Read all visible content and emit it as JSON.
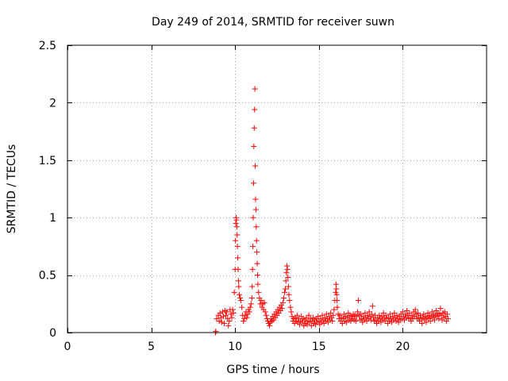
{
  "chart_data": {
    "type": "scatter",
    "title": "Day 249 of 2014, SRMTID for receiver suwn",
    "xlabel": "GPS time / hours",
    "ylabel": "SRMTID / TECUs",
    "xlim": [
      0,
      25
    ],
    "ylim": [
      0,
      2.5
    ],
    "xticks": [
      0,
      5,
      10,
      15,
      20
    ],
    "xtick_labels": [
      "0",
      "5",
      "10",
      "15",
      "20"
    ],
    "yticks": [
      0,
      0.5,
      1,
      1.5,
      2,
      2.5
    ],
    "ytick_labels": [
      "0",
      "0.5",
      "1",
      "1.5",
      "2",
      "2.5"
    ],
    "grid": true,
    "marker": "+",
    "series_color": "#ff0000",
    "series": [
      {
        "name": "SRMTID",
        "points": [
          [
            8.83,
            0.0
          ],
          [
            8.85,
            0.01
          ],
          [
            8.9,
            0.12
          ],
          [
            9.0,
            0.15
          ],
          [
            9.05,
            0.1
          ],
          [
            9.1,
            0.17
          ],
          [
            9.15,
            0.13
          ],
          [
            9.2,
            0.09
          ],
          [
            9.25,
            0.18
          ],
          [
            9.3,
            0.14
          ],
          [
            9.35,
            0.08
          ],
          [
            9.4,
            0.19
          ],
          [
            9.45,
            0.15
          ],
          [
            9.5,
            0.18
          ],
          [
            9.55,
            0.12
          ],
          [
            9.6,
            0.06
          ],
          [
            9.65,
            0.1
          ],
          [
            9.7,
            0.2
          ],
          [
            9.75,
            0.16
          ],
          [
            9.8,
            0.13
          ],
          [
            9.85,
            0.2
          ],
          [
            9.9,
            0.17
          ],
          [
            9.95,
            0.35
          ],
          [
            10.0,
            0.55
          ],
          [
            10.02,
            0.8
          ],
          [
            10.04,
            0.95
          ],
          [
            10.06,
            1.0
          ],
          [
            10.08,
            0.98
          ],
          [
            10.1,
            0.92
          ],
          [
            10.12,
            0.85
          ],
          [
            10.14,
            0.75
          ],
          [
            10.16,
            0.65
          ],
          [
            10.18,
            0.55
          ],
          [
            10.2,
            0.45
          ],
          [
            10.22,
            0.4
          ],
          [
            10.25,
            0.33
          ],
          [
            10.3,
            0.3
          ],
          [
            10.35,
            0.28
          ],
          [
            10.4,
            0.22
          ],
          [
            10.45,
            0.15
          ],
          [
            10.5,
            0.1
          ],
          [
            10.55,
            0.12
          ],
          [
            10.6,
            0.15
          ],
          [
            10.65,
            0.18
          ],
          [
            10.7,
            0.13
          ],
          [
            10.75,
            0.16
          ],
          [
            10.8,
            0.2
          ],
          [
            10.85,
            0.18
          ],
          [
            10.9,
            0.22
          ],
          [
            10.95,
            0.25
          ],
          [
            11.0,
            0.3
          ],
          [
            11.02,
            0.4
          ],
          [
            11.04,
            0.55
          ],
          [
            11.06,
            0.75
          ],
          [
            11.08,
            1.0
          ],
          [
            11.1,
            1.3
          ],
          [
            11.12,
            1.62
          ],
          [
            11.14,
            1.78
          ],
          [
            11.16,
            1.94
          ],
          [
            11.18,
            2.12
          ],
          [
            11.2,
            1.45
          ],
          [
            11.22,
            1.16
          ],
          [
            11.24,
            1.07
          ],
          [
            11.26,
            0.92
          ],
          [
            11.28,
            0.8
          ],
          [
            11.3,
            0.7
          ],
          [
            11.32,
            0.6
          ],
          [
            11.34,
            0.5
          ],
          [
            11.36,
            0.42
          ],
          [
            11.4,
            0.35
          ],
          [
            11.45,
            0.3
          ],
          [
            11.5,
            0.25
          ],
          [
            11.55,
            0.28
          ],
          [
            11.6,
            0.22
          ],
          [
            11.65,
            0.25
          ],
          [
            11.7,
            0.2
          ],
          [
            11.75,
            0.26
          ],
          [
            11.8,
            0.18
          ],
          [
            11.85,
            0.15
          ],
          [
            11.9,
            0.12
          ],
          [
            11.95,
            0.1
          ],
          [
            12.0,
            0.08
          ],
          [
            12.05,
            0.06
          ],
          [
            12.1,
            0.09
          ],
          [
            12.15,
            0.12
          ],
          [
            12.2,
            0.1
          ],
          [
            12.25,
            0.14
          ],
          [
            12.3,
            0.11
          ],
          [
            12.35,
            0.16
          ],
          [
            12.4,
            0.13
          ],
          [
            12.45,
            0.18
          ],
          [
            12.5,
            0.15
          ],
          [
            12.55,
            0.2
          ],
          [
            12.6,
            0.17
          ],
          [
            12.65,
            0.22
          ],
          [
            12.7,
            0.19
          ],
          [
            12.75,
            0.24
          ],
          [
            12.8,
            0.21
          ],
          [
            12.85,
            0.26
          ],
          [
            12.9,
            0.3
          ],
          [
            12.95,
            0.35
          ],
          [
            13.0,
            0.38
          ],
          [
            13.03,
            0.45
          ],
          [
            13.06,
            0.52
          ],
          [
            13.09,
            0.58
          ],
          [
            13.12,
            0.55
          ],
          [
            13.15,
            0.48
          ],
          [
            13.18,
            0.4
          ],
          [
            13.21,
            0.33
          ],
          [
            13.25,
            0.28
          ],
          [
            13.3,
            0.22
          ],
          [
            13.35,
            0.18
          ],
          [
            13.4,
            0.14
          ],
          [
            13.45,
            0.1
          ],
          [
            13.5,
            0.12
          ],
          [
            13.55,
            0.08
          ],
          [
            13.6,
            0.13
          ],
          [
            13.65,
            0.1
          ],
          [
            13.7,
            0.15
          ],
          [
            13.75,
            0.09
          ],
          [
            13.8,
            0.12
          ],
          [
            13.85,
            0.07
          ],
          [
            13.9,
            0.1
          ],
          [
            13.95,
            0.14
          ],
          [
            14.0,
            0.09
          ],
          [
            14.05,
            0.12
          ],
          [
            14.1,
            0.06
          ],
          [
            14.15,
            0.11
          ],
          [
            14.2,
            0.08
          ],
          [
            14.25,
            0.13
          ],
          [
            14.3,
            0.07
          ],
          [
            14.35,
            0.1
          ],
          [
            14.4,
            0.15
          ],
          [
            14.45,
            0.09
          ],
          [
            14.5,
            0.12
          ],
          [
            14.55,
            0.06
          ],
          [
            14.6,
            0.1
          ],
          [
            14.65,
            0.13
          ],
          [
            14.7,
            0.08
          ],
          [
            14.75,
            0.11
          ],
          [
            14.8,
            0.07
          ],
          [
            14.85,
            0.12
          ],
          [
            14.9,
            0.09
          ],
          [
            14.95,
            0.14
          ],
          [
            15.0,
            0.1
          ],
          [
            15.05,
            0.07
          ],
          [
            15.1,
            0.12
          ],
          [
            15.15,
            0.09
          ],
          [
            15.2,
            0.15
          ],
          [
            15.25,
            0.11
          ],
          [
            15.3,
            0.08
          ],
          [
            15.35,
            0.13
          ],
          [
            15.4,
            0.1
          ],
          [
            15.45,
            0.16
          ],
          [
            15.5,
            0.12
          ],
          [
            15.55,
            0.09
          ],
          [
            15.6,
            0.14
          ],
          [
            15.65,
            0.11
          ],
          [
            15.7,
            0.17
          ],
          [
            15.75,
            0.13
          ],
          [
            15.8,
            0.1
          ],
          [
            15.85,
            0.15
          ],
          [
            15.9,
            0.2
          ],
          [
            15.95,
            0.28
          ],
          [
            16.0,
            0.35
          ],
          [
            16.02,
            0.42
          ],
          [
            16.04,
            0.38
          ],
          [
            16.06,
            0.33
          ],
          [
            16.08,
            0.28
          ],
          [
            16.1,
            0.22
          ],
          [
            16.15,
            0.16
          ],
          [
            16.2,
            0.12
          ],
          [
            16.25,
            0.15
          ],
          [
            16.3,
            0.1
          ],
          [
            16.35,
            0.13
          ],
          [
            16.4,
            0.08
          ],
          [
            16.45,
            0.12
          ],
          [
            16.5,
            0.16
          ],
          [
            16.55,
            0.1
          ],
          [
            16.6,
            0.14
          ],
          [
            16.65,
            0.09
          ],
          [
            16.7,
            0.13
          ],
          [
            16.75,
            0.17
          ],
          [
            16.8,
            0.11
          ],
          [
            16.85,
            0.15
          ],
          [
            16.9,
            0.1
          ],
          [
            16.95,
            0.14
          ],
          [
            17.0,
            0.12
          ],
          [
            17.05,
            0.16
          ],
          [
            17.1,
            0.11
          ],
          [
            17.15,
            0.15
          ],
          [
            17.2,
            0.1
          ],
          [
            17.25,
            0.14
          ],
          [
            17.3,
            0.18
          ],
          [
            17.35,
            0.28
          ],
          [
            17.4,
            0.15
          ],
          [
            17.45,
            0.11
          ],
          [
            17.5,
            0.16
          ],
          [
            17.55,
            0.12
          ],
          [
            17.6,
            0.09
          ],
          [
            17.65,
            0.14
          ],
          [
            17.7,
            0.11
          ],
          [
            17.75,
            0.17
          ],
          [
            17.8,
            0.13
          ],
          [
            17.85,
            0.1
          ],
          [
            17.9,
            0.15
          ],
          [
            17.95,
            0.12
          ],
          [
            18.0,
            0.18
          ],
          [
            18.05,
            0.14
          ],
          [
            18.1,
            0.11
          ],
          [
            18.15,
            0.16
          ],
          [
            18.2,
            0.23
          ],
          [
            18.25,
            0.13
          ],
          [
            18.3,
            0.1
          ],
          [
            18.35,
            0.15
          ],
          [
            18.4,
            0.11
          ],
          [
            18.45,
            0.08
          ],
          [
            18.5,
            0.13
          ],
          [
            18.55,
            0.1
          ],
          [
            18.6,
            0.15
          ],
          [
            18.65,
            0.12
          ],
          [
            18.7,
            0.09
          ],
          [
            18.75,
            0.14
          ],
          [
            18.8,
            0.11
          ],
          [
            18.85,
            0.17
          ],
          [
            18.9,
            0.13
          ],
          [
            18.95,
            0.1
          ],
          [
            19.0,
            0.15
          ],
          [
            19.05,
            0.12
          ],
          [
            19.1,
            0.08
          ],
          [
            19.15,
            0.13
          ],
          [
            19.2,
            0.1
          ],
          [
            19.25,
            0.16
          ],
          [
            19.3,
            0.12
          ],
          [
            19.35,
            0.09
          ],
          [
            19.4,
            0.14
          ],
          [
            19.45,
            0.11
          ],
          [
            19.5,
            0.17
          ],
          [
            19.55,
            0.13
          ],
          [
            19.6,
            0.1
          ],
          [
            19.65,
            0.15
          ],
          [
            19.7,
            0.12
          ],
          [
            19.75,
            0.09
          ],
          [
            19.8,
            0.14
          ],
          [
            19.85,
            0.11
          ],
          [
            19.9,
            0.16
          ],
          [
            19.95,
            0.12
          ],
          [
            20.0,
            0.18
          ],
          [
            20.05,
            0.14
          ],
          [
            20.1,
            0.11
          ],
          [
            20.15,
            0.16
          ],
          [
            20.2,
            0.13
          ],
          [
            20.25,
            0.19
          ],
          [
            20.3,
            0.15
          ],
          [
            20.35,
            0.12
          ],
          [
            20.4,
            0.17
          ],
          [
            20.45,
            0.13
          ],
          [
            20.5,
            0.1
          ],
          [
            20.55,
            0.15
          ],
          [
            20.6,
            0.12
          ],
          [
            20.65,
            0.18
          ],
          [
            20.7,
            0.14
          ],
          [
            20.75,
            0.2
          ],
          [
            20.8,
            0.16
          ],
          [
            20.85,
            0.12
          ],
          [
            20.9,
            0.17
          ],
          [
            20.95,
            0.13
          ],
          [
            21.0,
            0.1
          ],
          [
            21.05,
            0.15
          ],
          [
            21.1,
            0.12
          ],
          [
            21.15,
            0.08
          ],
          [
            21.2,
            0.13
          ],
          [
            21.25,
            0.16
          ],
          [
            21.3,
            0.11
          ],
          [
            21.35,
            0.14
          ],
          [
            21.4,
            0.09
          ],
          [
            21.45,
            0.13
          ],
          [
            21.5,
            0.17
          ],
          [
            21.55,
            0.12
          ],
          [
            21.6,
            0.15
          ],
          [
            21.65,
            0.1
          ],
          [
            21.7,
            0.14
          ],
          [
            21.75,
            0.18
          ],
          [
            21.8,
            0.13
          ],
          [
            21.85,
            0.16
          ],
          [
            21.9,
            0.11
          ],
          [
            21.95,
            0.15
          ],
          [
            22.0,
            0.19
          ],
          [
            22.05,
            0.14
          ],
          [
            22.1,
            0.17
          ],
          [
            22.15,
            0.12
          ],
          [
            22.2,
            0.16
          ],
          [
            22.25,
            0.21
          ],
          [
            22.3,
            0.15
          ],
          [
            22.35,
            0.11
          ],
          [
            22.4,
            0.17
          ],
          [
            22.45,
            0.13
          ],
          [
            22.5,
            0.18
          ],
          [
            22.55,
            0.14
          ],
          [
            22.6,
            0.1
          ],
          [
            22.65,
            0.16
          ],
          [
            22.7,
            0.12
          ]
        ]
      }
    ]
  }
}
